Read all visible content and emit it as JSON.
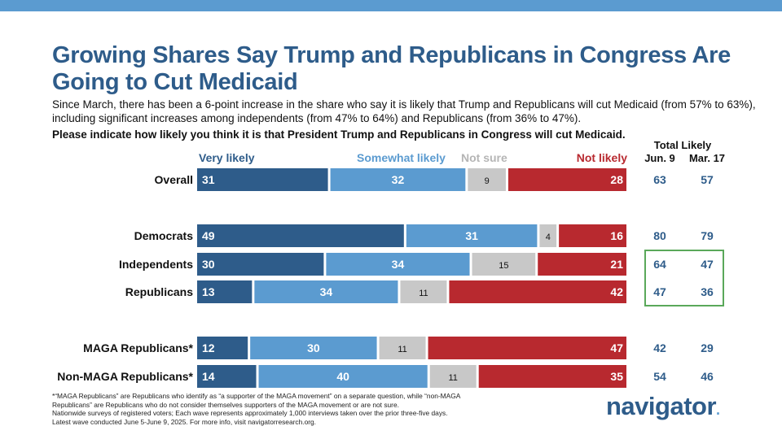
{
  "title": "Growing Shares Say Trump and Republicans in Congress Are Going to Cut Medicaid",
  "subtitle": "Since March, there has been a 6-point increase in the share who say it is likely that Trump and Republicans will cut Medicaid (from 57% to 63%), including significant increases among independents (from 47% to 64%) and Republicans (from 36% to 47%).",
  "question": "Please indicate how likely you think it is that President Trump and Republicans in Congress will cut Medicaid.",
  "chart_data": {
    "type": "bar",
    "orientation": "horizontal-stacked",
    "legend": [
      "Very likely",
      "Somewhat likely",
      "Not sure",
      "Not likely"
    ],
    "colors": {
      "very": "#2e5c8a",
      "somewhat": "#5b9bd0",
      "notsure": "#c8c8c8",
      "not": "#b8292f",
      "highlight": "#5aa85a"
    },
    "categories": [
      "Overall",
      "Democrats",
      "Independents",
      "Republicans",
      "MAGA Republicans*",
      "Non-MAGA Republicans*"
    ],
    "series": [
      {
        "name": "Very likely",
        "values": [
          31,
          49,
          30,
          13,
          12,
          14
        ]
      },
      {
        "name": "Somewhat likely",
        "values": [
          32,
          31,
          34,
          34,
          30,
          40
        ]
      },
      {
        "name": "Not sure",
        "values": [
          9,
          4,
          15,
          11,
          11,
          11
        ]
      },
      {
        "name": "Not likely",
        "values": [
          28,
          16,
          21,
          42,
          47,
          35
        ]
      }
    ],
    "total_likely": {
      "header": "Total Likely",
      "columns": [
        "Jun. 9",
        "Mar. 17"
      ],
      "jun9": [
        63,
        80,
        64,
        47,
        42,
        54
      ],
      "mar17": [
        57,
        79,
        47,
        36,
        29,
        46
      ]
    },
    "highlighted_categories": [
      "Independents",
      "Republicans"
    ]
  },
  "footnote": [
    "*“MAGA Republicans” are Republicans who identify as “a supporter of the MAGA movement” on a separate question, while “non-MAGA",
    "Republicans” are Republicans who do not consider themselves supporters of the MAGA movement or are not sure.",
    "Nationwide surveys of registered voters; Each wave represents approximately 1,000 interviews taken over the prior three-five days.",
    "Latest wave conducted June 5-June 9, 2025. For more info, visit navigatorresearch.org."
  ],
  "logo": {
    "text": "navigator",
    "dot": "."
  }
}
